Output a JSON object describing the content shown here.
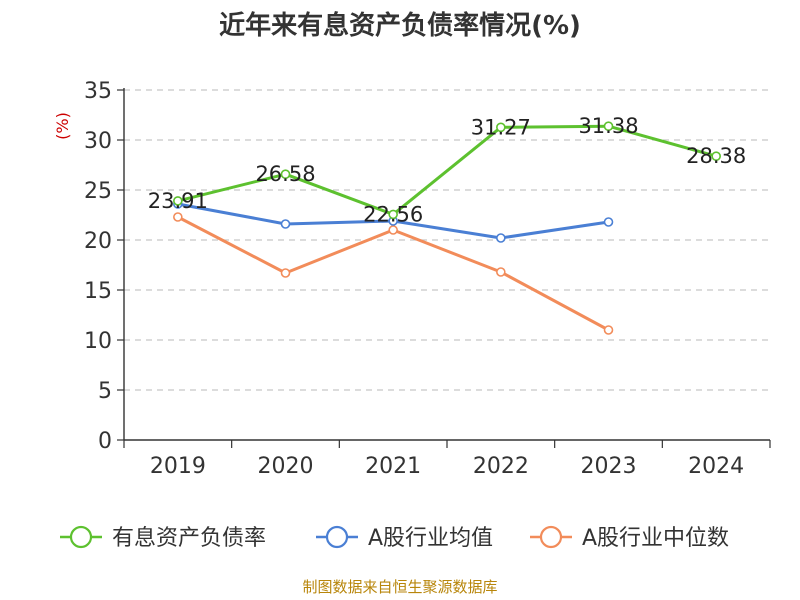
{
  "chart_data": {
    "type": "line",
    "title": "近年来有息资产负债率情况(%)",
    "ylabel": "(%)",
    "categories": [
      "2019",
      "2020",
      "2021",
      "2022",
      "2023",
      "2024"
    ],
    "ylim": [
      0,
      35
    ],
    "yticks": [
      0,
      5,
      10,
      15,
      20,
      25,
      30,
      35
    ],
    "grid": true,
    "legend_position": "bottom",
    "series": [
      {
        "name": "有息资产负债率",
        "color": "#5dc12f",
        "values": [
          23.91,
          26.58,
          22.56,
          31.27,
          31.38,
          28.38
        ],
        "labels": [
          "23.91",
          "26.58",
          "22.56",
          "31.27",
          "31.38",
          "28.38"
        ]
      },
      {
        "name": "A股行业均值",
        "color": "#4a7fd4",
        "values": [
          23.6,
          21.6,
          21.9,
          20.2,
          21.8,
          null
        ],
        "labels": null
      },
      {
        "name": "A股行业中位数",
        "color": "#f28c5a",
        "values": [
          22.3,
          16.7,
          21.0,
          16.8,
          11.0,
          null
        ],
        "labels": null
      }
    ]
  },
  "source": "制图数据来自恒生聚源数据库"
}
